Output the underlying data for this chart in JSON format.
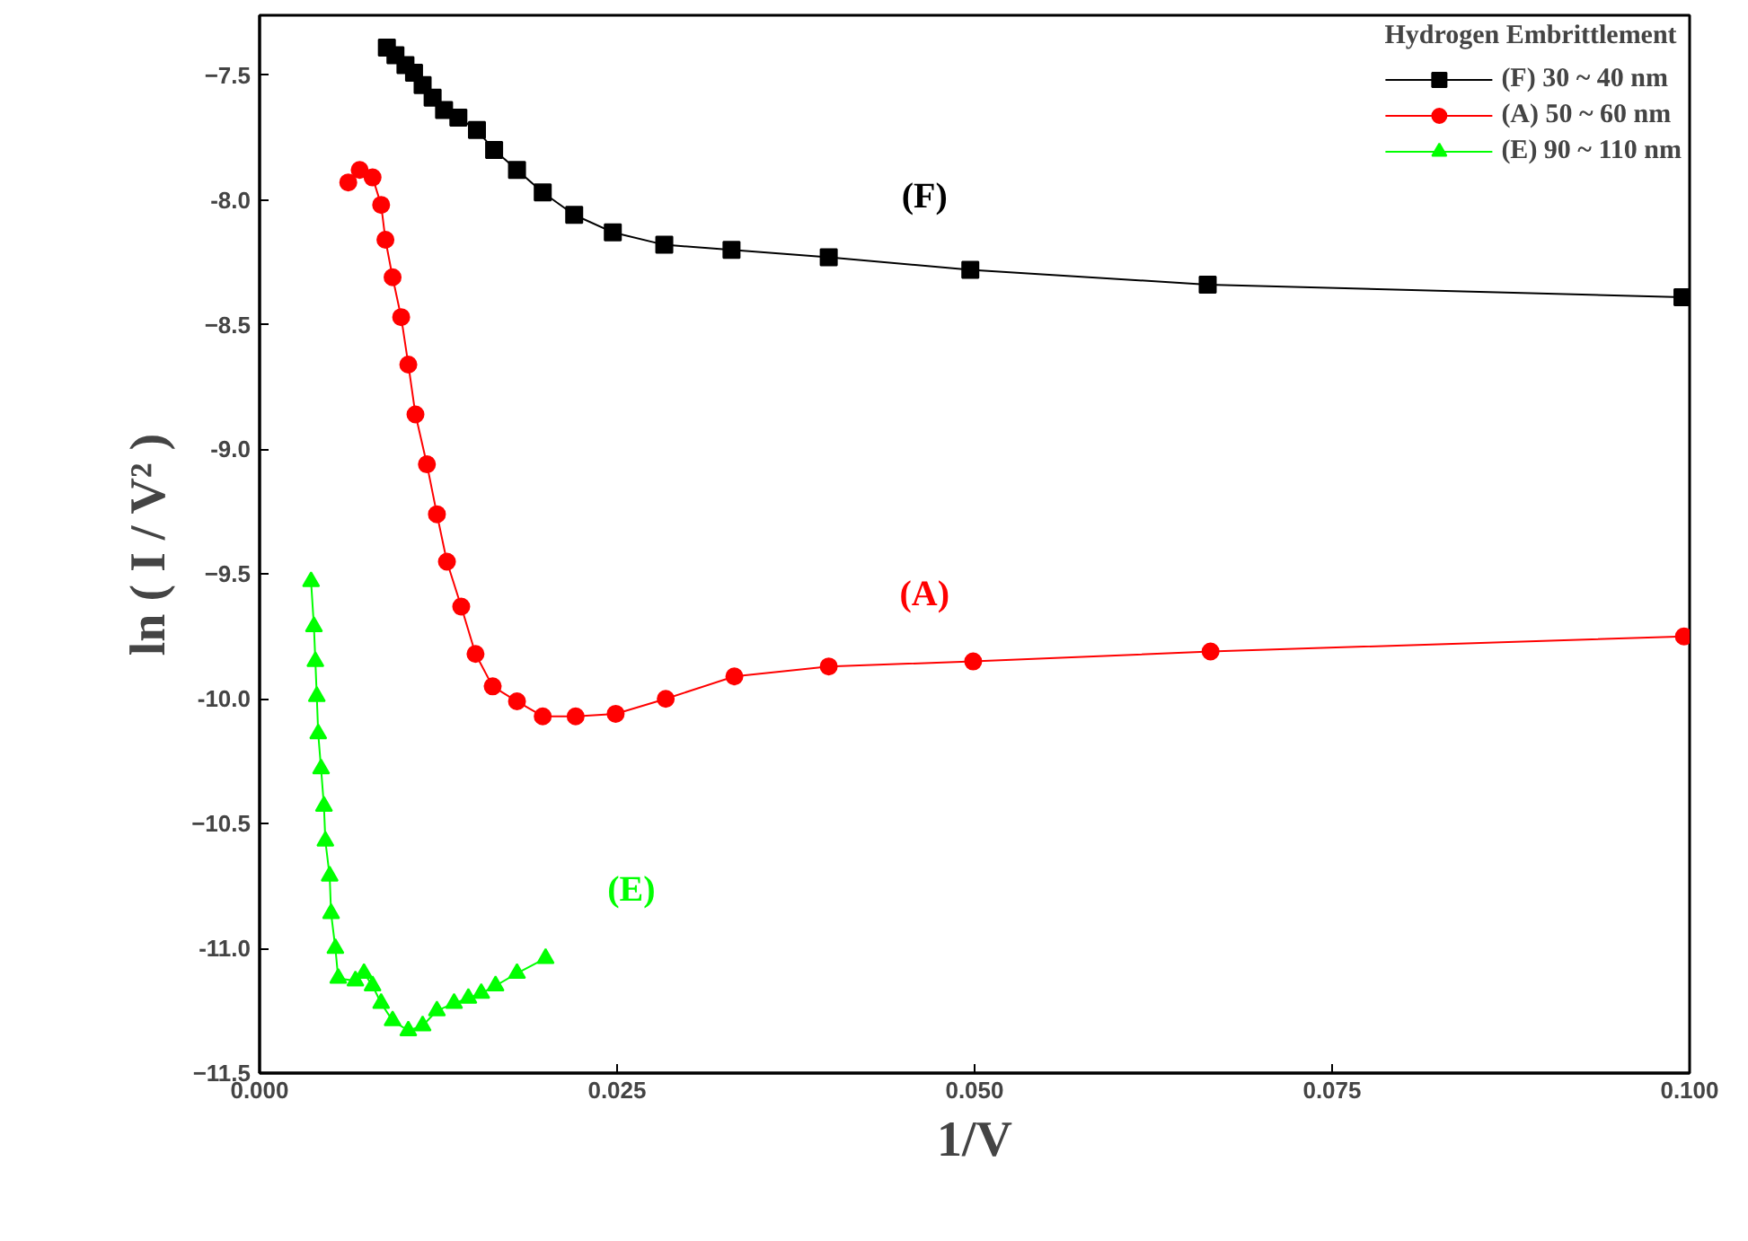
{
  "chart_data": {
    "type": "line",
    "xlabel": "1/V",
    "ylabel": "ln ( I / V² )",
    "legend_title": "Hydrogen Embrittlement",
    "legend": "top right",
    "grid": false,
    "line_style": "solid",
    "xlim": [
      0,
      0.1
    ],
    "ylim": [
      -11.5,
      -7.26
    ],
    "xticks": [
      {
        "value": 0,
        "label": "0.000"
      },
      {
        "value": 0.025,
        "label": "0.025"
      },
      {
        "value": 0.05,
        "label": "0.050"
      },
      {
        "value": 0.075,
        "label": "0.075"
      },
      {
        "value": 0.1,
        "label": "0.100"
      }
    ],
    "yticks": [
      -7.5,
      {
        "value": -8,
        "label": "-8.0"
      },
      -8.5,
      {
        "value": -9,
        "label": "-9.0"
      },
      -9.5,
      {
        "value": -10,
        "label": "-10.0"
      },
      -10.5,
      {
        "value": -11,
        "label": "-11.0"
      },
      -11.5
    ],
    "series": [
      {
        "name": "(F) 30 ~ 40 nm",
        "color": "#000000",
        "marker": "square",
        "x": [
          0.0089,
          0.0095,
          0.0102,
          0.0108,
          0.0114,
          0.0121,
          0.0129,
          0.0139,
          0.0152,
          0.0164,
          0.018,
          0.0198,
          0.022,
          0.0247,
          0.0283,
          0.033,
          0.0398,
          0.0497,
          0.0663,
          0.0995
        ],
        "values": [
          -7.39,
          -7.42,
          -7.46,
          -7.49,
          -7.54,
          -7.59,
          -7.64,
          -7.67,
          -7.72,
          -7.8,
          -7.88,
          -7.97,
          -8.06,
          -8.13,
          -8.18,
          -8.2,
          -8.23,
          -8.28,
          -8.34,
          -8.39
        ]
      },
      {
        "name": "(A) 50 ~ 60 nm",
        "color": "#ff0000",
        "marker": "circle",
        "x": [
          0.0062,
          0.007,
          0.0079,
          0.0085,
          0.0088,
          0.0093,
          0.0099,
          0.0104,
          0.0109,
          0.0117,
          0.0124,
          0.0131,
          0.0141,
          0.0151,
          0.0163,
          0.018,
          0.0198,
          0.0221,
          0.0249,
          0.0284,
          0.0332,
          0.0398,
          0.0499,
          0.0665,
          0.0996
        ],
        "values": [
          -7.93,
          -7.88,
          -7.91,
          -8.02,
          -8.16,
          -8.31,
          -8.47,
          -8.66,
          -8.86,
          -9.06,
          -9.26,
          -9.45,
          -9.63,
          -9.82,
          -9.95,
          -10.01,
          -10.07,
          -10.07,
          -10.06,
          -10.0,
          -9.91,
          -9.87,
          -9.85,
          -9.81,
          -9.75
        ]
      },
      {
        "name": "(E) 90 ~ 110 nm",
        "color": "#00ff00",
        "marker": "triangle",
        "x": [
          0.0036,
          0.0038,
          0.0039,
          0.004,
          0.0041,
          0.0043,
          0.0045,
          0.0046,
          0.0049,
          0.005,
          0.0053,
          0.0055,
          0.0067,
          0.0073,
          0.0079,
          0.0085,
          0.0093,
          0.0104,
          0.0114,
          0.0124,
          0.0136,
          0.0146,
          0.0155,
          0.0165,
          0.018,
          0.02
        ],
        "values": [
          -9.53,
          -9.71,
          -9.85,
          -9.99,
          -10.14,
          -10.28,
          -10.43,
          -10.57,
          -10.71,
          -10.86,
          -11.0,
          -11.12,
          -11.13,
          -11.1,
          -11.15,
          -11.22,
          -11.29,
          -11.33,
          -11.31,
          -11.25,
          -11.22,
          -11.2,
          -11.18,
          -11.15,
          -11.1,
          -11.04
        ]
      }
    ],
    "annotations": [
      "(F)",
      "(A)",
      "(E)"
    ]
  }
}
